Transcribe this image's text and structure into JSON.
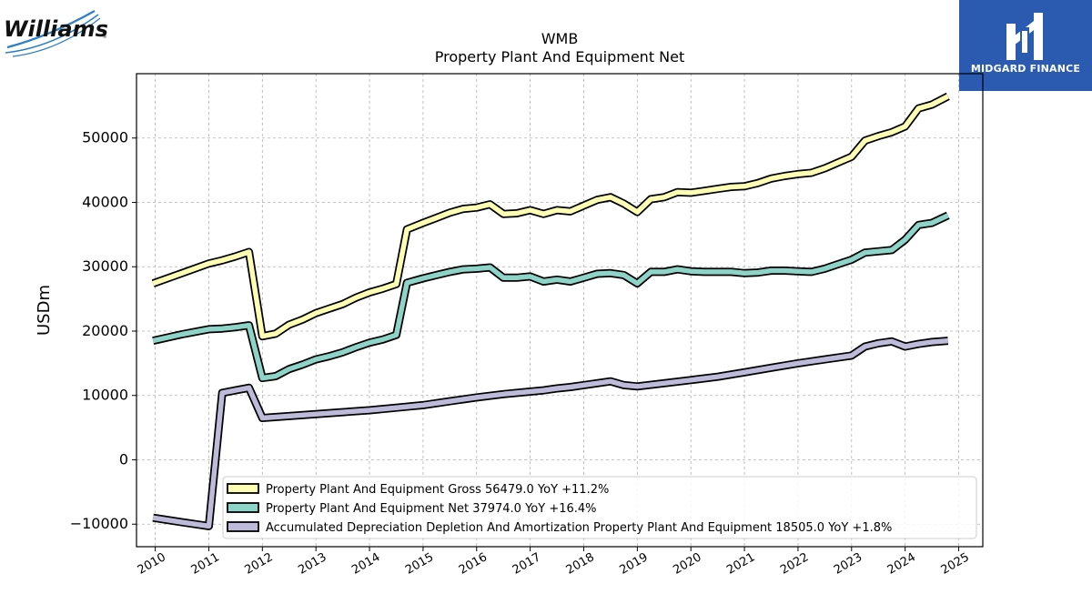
{
  "logos": {
    "williams": "Williams",
    "midgard": "MIDGARD FINANCE"
  },
  "chart_data": {
    "type": "line",
    "title": "WMB",
    "subtitle": "Property Plant And Equipment Net",
    "xlabel": "",
    "ylabel": "USDm",
    "xlim": [
      2009.65,
      2025.45
    ],
    "ylim": [
      -13500,
      60000
    ],
    "x_ticks": [
      "2010",
      "2011",
      "2012",
      "2013",
      "2014",
      "2015",
      "2016",
      "2017",
      "2018",
      "2019",
      "2020",
      "2021",
      "2022",
      "2023",
      "2024",
      "2025"
    ],
    "y_ticks": [
      -10000,
      0,
      10000,
      20000,
      30000,
      40000,
      50000
    ],
    "y_tick_labels": [
      "−10000",
      "0",
      "10000",
      "20000",
      "30000",
      "40000",
      "50000"
    ],
    "grid": true,
    "legend_position": "lower-center",
    "series": [
      {
        "name": "Property Plant And Equipment Gross  56479.0 YoY +11.2%",
        "color": "#ffffb3",
        "points": [
          [
            2009.96,
            27400
          ],
          [
            2010.5,
            29000
          ],
          [
            2011.0,
            30500
          ],
          [
            2011.25,
            31000
          ],
          [
            2011.5,
            31600
          ],
          [
            2011.75,
            32300
          ],
          [
            2012.0,
            19200
          ],
          [
            2012.25,
            19600
          ],
          [
            2012.5,
            21000
          ],
          [
            2012.75,
            21800
          ],
          [
            2013.0,
            22800
          ],
          [
            2013.25,
            23500
          ],
          [
            2013.5,
            24200
          ],
          [
            2013.75,
            25200
          ],
          [
            2014.0,
            26000
          ],
          [
            2014.25,
            26600
          ],
          [
            2014.5,
            27300
          ],
          [
            2014.7,
            35800
          ],
          [
            2015.0,
            36800
          ],
          [
            2015.25,
            37600
          ],
          [
            2015.5,
            38400
          ],
          [
            2015.75,
            39000
          ],
          [
            2016.0,
            39200
          ],
          [
            2016.25,
            39700
          ],
          [
            2016.5,
            38200
          ],
          [
            2016.75,
            38300
          ],
          [
            2017.0,
            38800
          ],
          [
            2017.25,
            38200
          ],
          [
            2017.5,
            38800
          ],
          [
            2017.75,
            38600
          ],
          [
            2018.0,
            39500
          ],
          [
            2018.25,
            40400
          ],
          [
            2018.5,
            40800
          ],
          [
            2018.75,
            39800
          ],
          [
            2019.0,
            38500
          ],
          [
            2019.25,
            40500
          ],
          [
            2019.5,
            40800
          ],
          [
            2019.75,
            41600
          ],
          [
            2020.0,
            41500
          ],
          [
            2020.25,
            41800
          ],
          [
            2020.5,
            42100
          ],
          [
            2020.75,
            42400
          ],
          [
            2021.0,
            42500
          ],
          [
            2021.25,
            43000
          ],
          [
            2021.5,
            43700
          ],
          [
            2021.75,
            44100
          ],
          [
            2022.0,
            44400
          ],
          [
            2022.25,
            44600
          ],
          [
            2022.5,
            45300
          ],
          [
            2022.75,
            46200
          ],
          [
            2023.0,
            47100
          ],
          [
            2023.25,
            49600
          ],
          [
            2023.5,
            50300
          ],
          [
            2023.75,
            50900
          ],
          [
            2024.0,
            51800
          ],
          [
            2024.25,
            54600
          ],
          [
            2024.5,
            55200
          ],
          [
            2024.8,
            56479
          ]
        ]
      },
      {
        "name": "Property Plant And Equipment Net  37974.0 YoY +16.4%",
        "color": "#8dd3c7",
        "points": [
          [
            2009.96,
            18500
          ],
          [
            2010.5,
            19500
          ],
          [
            2011.0,
            20300
          ],
          [
            2011.25,
            20400
          ],
          [
            2011.5,
            20600
          ],
          [
            2011.75,
            20900
          ],
          [
            2012.0,
            12700
          ],
          [
            2012.25,
            13000
          ],
          [
            2012.5,
            14100
          ],
          [
            2012.75,
            14800
          ],
          [
            2013.0,
            15600
          ],
          [
            2013.25,
            16100
          ],
          [
            2013.5,
            16700
          ],
          [
            2013.75,
            17500
          ],
          [
            2014.0,
            18200
          ],
          [
            2014.25,
            18700
          ],
          [
            2014.5,
            19400
          ],
          [
            2014.7,
            27500
          ],
          [
            2015.0,
            28200
          ],
          [
            2015.25,
            28700
          ],
          [
            2015.5,
            29200
          ],
          [
            2015.75,
            29600
          ],
          [
            2016.0,
            29700
          ],
          [
            2016.25,
            29900
          ],
          [
            2016.5,
            28300
          ],
          [
            2016.75,
            28300
          ],
          [
            2017.0,
            28500
          ],
          [
            2017.25,
            27700
          ],
          [
            2017.5,
            28000
          ],
          [
            2017.75,
            27700
          ],
          [
            2018.0,
            28300
          ],
          [
            2018.25,
            28900
          ],
          [
            2018.5,
            29000
          ],
          [
            2018.75,
            28700
          ],
          [
            2019.0,
            27400
          ],
          [
            2019.25,
            29200
          ],
          [
            2019.5,
            29200
          ],
          [
            2019.75,
            29600
          ],
          [
            2020.0,
            29300
          ],
          [
            2020.25,
            29200
          ],
          [
            2020.5,
            29200
          ],
          [
            2020.75,
            29200
          ],
          [
            2021.0,
            29000
          ],
          [
            2021.25,
            29100
          ],
          [
            2021.5,
            29400
          ],
          [
            2021.75,
            29400
          ],
          [
            2022.0,
            29300
          ],
          [
            2022.25,
            29200
          ],
          [
            2022.5,
            29700
          ],
          [
            2022.75,
            30400
          ],
          [
            2023.0,
            31100
          ],
          [
            2023.25,
            32200
          ],
          [
            2023.5,
            32400
          ],
          [
            2023.75,
            32600
          ],
          [
            2024.0,
            34200
          ],
          [
            2024.25,
            36500
          ],
          [
            2024.5,
            36800
          ],
          [
            2024.8,
            37974
          ]
        ]
      },
      {
        "name": "Accumulated Depreciation Depletion And Amortization Property Plant And Equipment  18505.0 YoY +1.8%",
        "color": "#bebada",
        "points": [
          [
            2009.96,
            -9000
          ],
          [
            2010.5,
            -9700
          ],
          [
            2011.0,
            -10300
          ],
          [
            2011.25,
            10400
          ],
          [
            2011.5,
            10800
          ],
          [
            2011.75,
            11200
          ],
          [
            2012.0,
            6500
          ],
          [
            2012.5,
            6800
          ],
          [
            2013.0,
            7100
          ],
          [
            2013.5,
            7400
          ],
          [
            2014.0,
            7700
          ],
          [
            2014.5,
            8100
          ],
          [
            2015.0,
            8500
          ],
          [
            2015.5,
            9100
          ],
          [
            2016.0,
            9700
          ],
          [
            2016.5,
            10200
          ],
          [
            2017.0,
            10600
          ],
          [
            2017.25,
            10800
          ],
          [
            2017.5,
            11100
          ],
          [
            2017.75,
            11300
          ],
          [
            2018.0,
            11600
          ],
          [
            2018.25,
            11900
          ],
          [
            2018.5,
            12200
          ],
          [
            2018.75,
            11600
          ],
          [
            2019.0,
            11400
          ],
          [
            2019.5,
            11900
          ],
          [
            2020.0,
            12400
          ],
          [
            2020.5,
            12900
          ],
          [
            2021.0,
            13600
          ],
          [
            2021.5,
            14300
          ],
          [
            2022.0,
            15000
          ],
          [
            2022.5,
            15600
          ],
          [
            2023.0,
            16200
          ],
          [
            2023.25,
            17600
          ],
          [
            2023.5,
            18100
          ],
          [
            2023.75,
            18400
          ],
          [
            2024.0,
            17600
          ],
          [
            2024.25,
            18000
          ],
          [
            2024.5,
            18300
          ],
          [
            2024.8,
            18505
          ]
        ]
      }
    ]
  }
}
